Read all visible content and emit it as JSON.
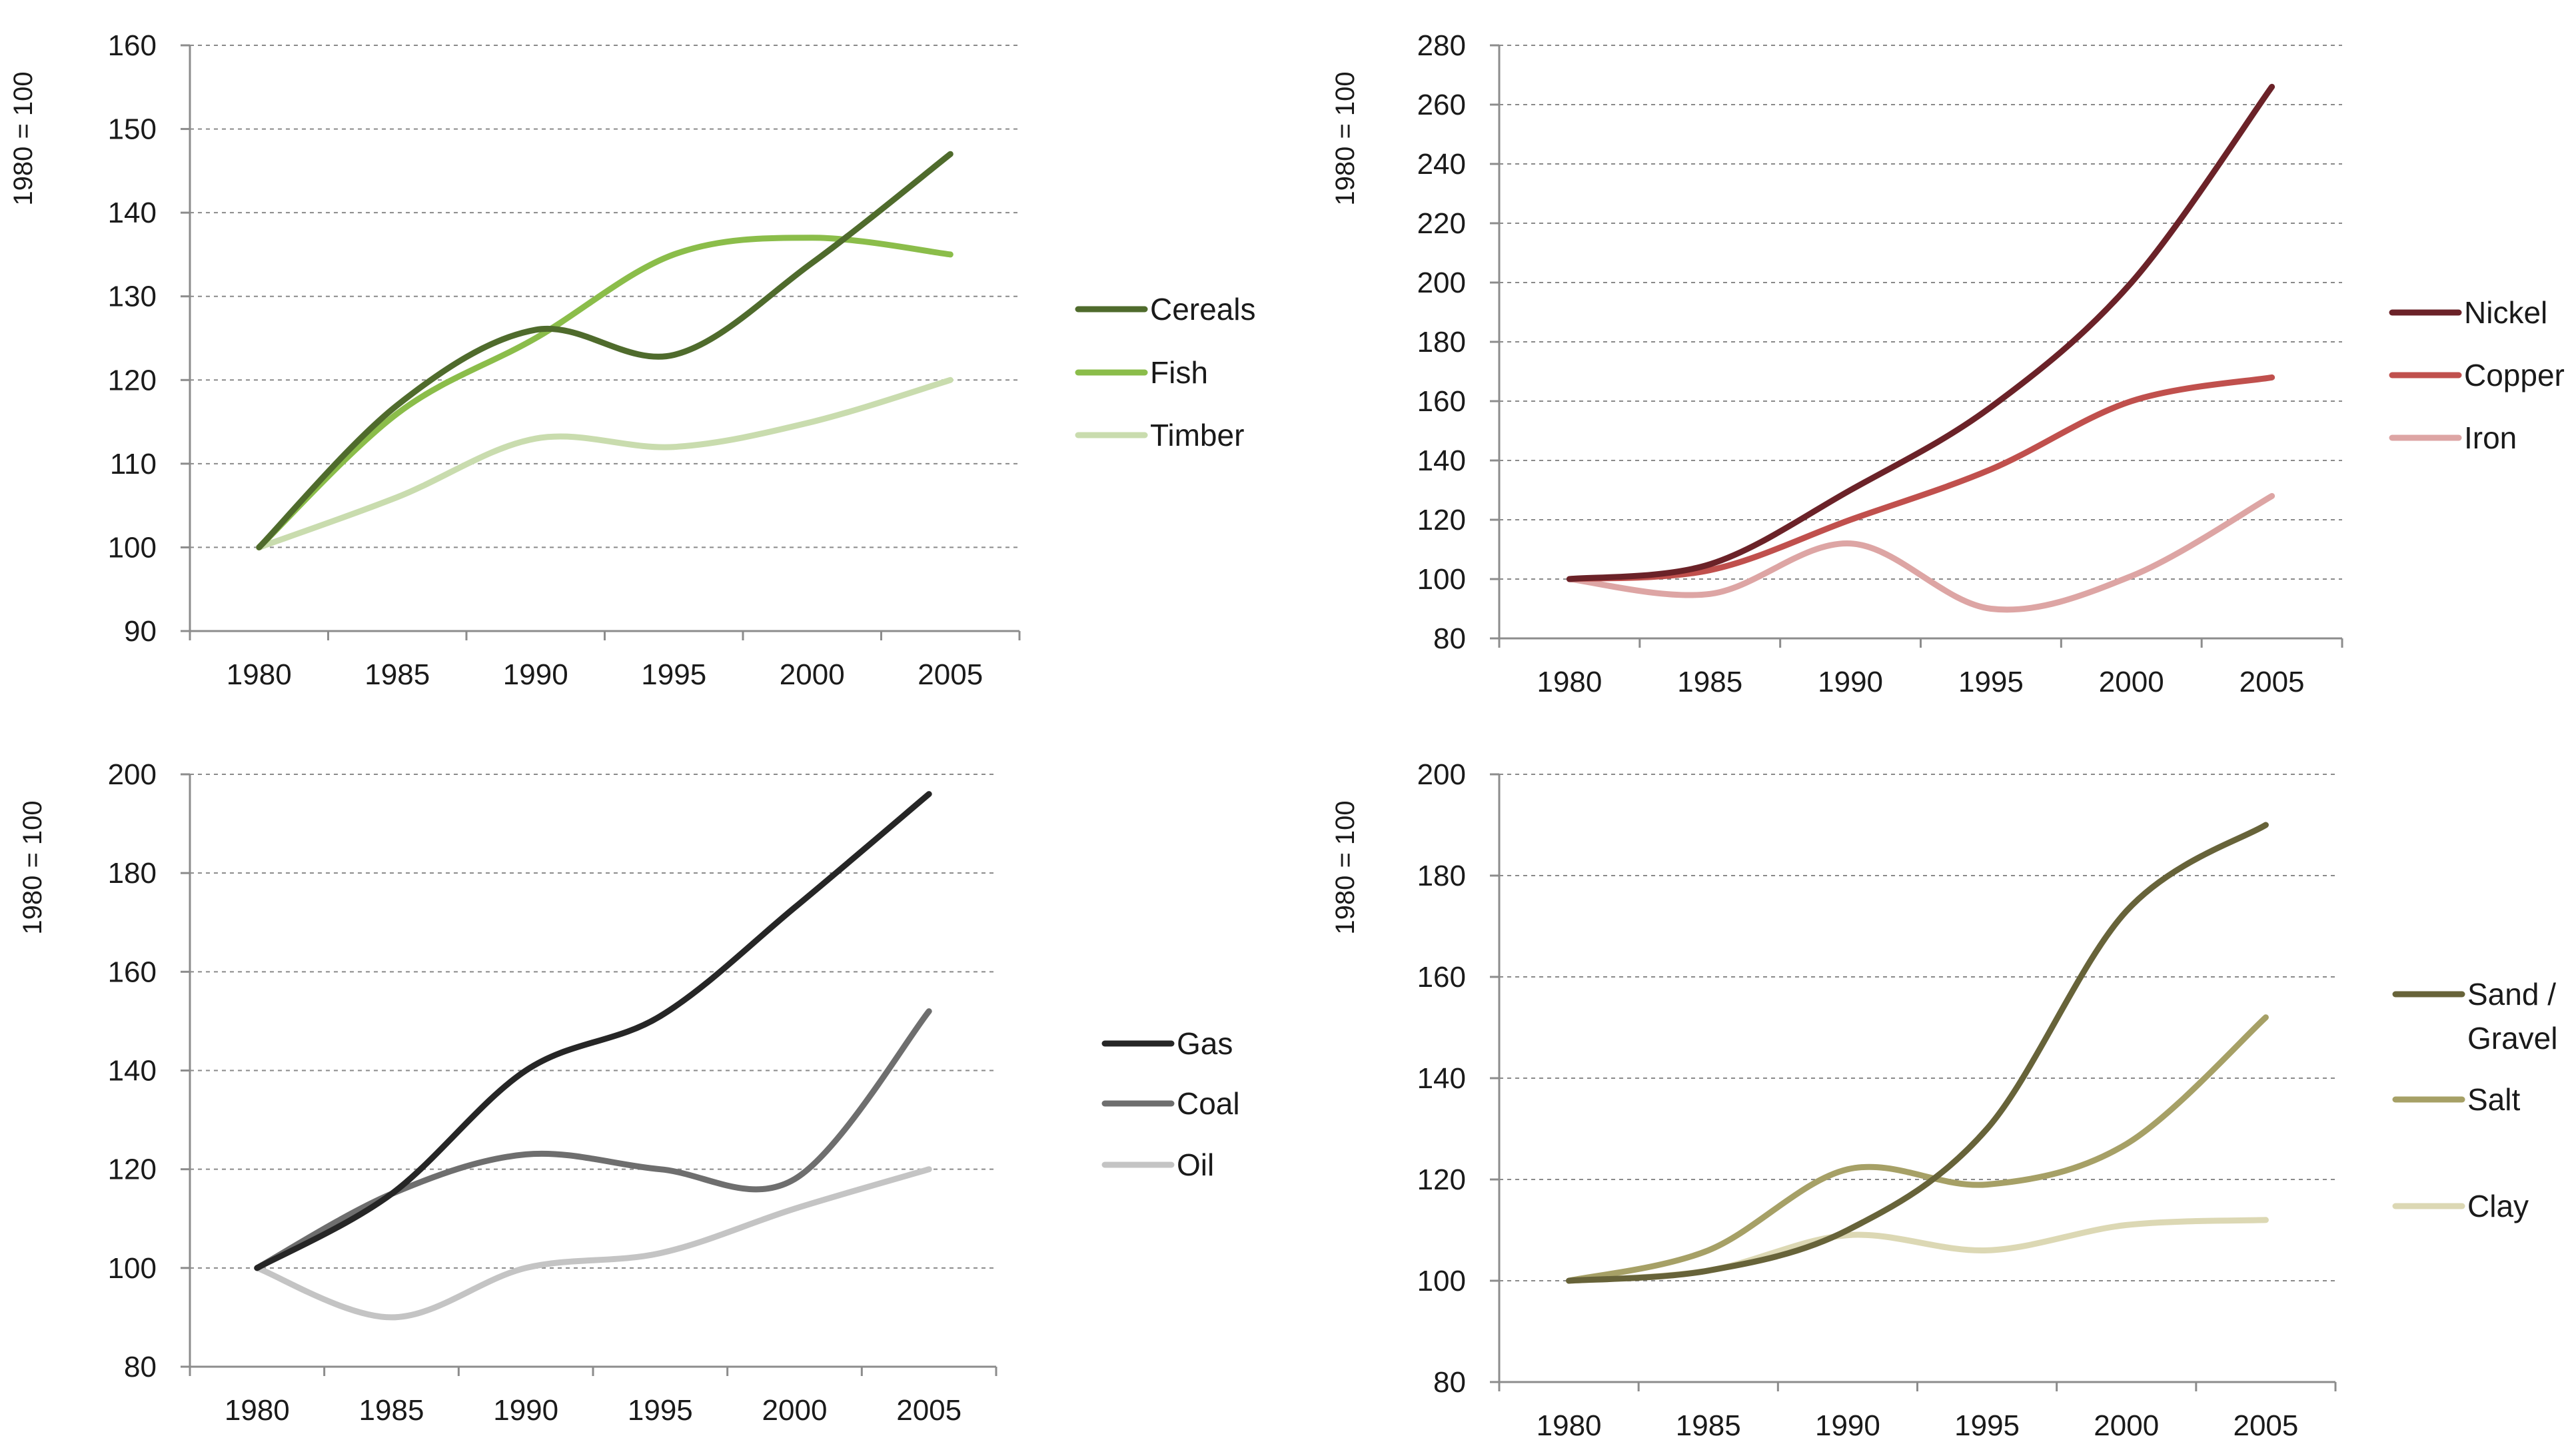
{
  "chart_data": [
    {
      "id": "renewables",
      "type": "line",
      "title": "",
      "xlabel": "",
      "ylabel": "1980 = 100",
      "x": [
        1980,
        1985,
        1990,
        1995,
        2000,
        2005
      ],
      "xticks": [
        "1980",
        "1985",
        "1990",
        "1995",
        "2000",
        "2005"
      ],
      "ylim": [
        90,
        160
      ],
      "yticks": [
        90,
        100,
        110,
        120,
        130,
        140,
        150,
        160
      ],
      "grid": true,
      "legend": "right",
      "series": [
        {
          "name": "Cereals",
          "label_lines": [
            "Cereals"
          ],
          "color": "#4f6b2c",
          "values": [
            100,
            117,
            126,
            123,
            134,
            147
          ]
        },
        {
          "name": "Fish",
          "label_lines": [
            "Fish"
          ],
          "color": "#8bbd4a",
          "values": [
            100,
            116,
            125,
            135,
            137,
            135
          ]
        },
        {
          "name": "Timber",
          "label_lines": [
            "Timber"
          ],
          "color": "#c9dcae",
          "values": [
            100,
            106,
            113,
            112,
            115,
            120
          ]
        }
      ]
    },
    {
      "id": "metals",
      "type": "line",
      "title": "",
      "xlabel": "",
      "ylabel": "1980 = 100",
      "x": [
        1980,
        1985,
        1990,
        1995,
        2000,
        2005
      ],
      "xticks": [
        "1980",
        "1985",
        "1990",
        "1995",
        "2000",
        "2005"
      ],
      "ylim": [
        80,
        280
      ],
      "yticks": [
        80,
        100,
        120,
        140,
        160,
        180,
        200,
        220,
        240,
        260,
        280
      ],
      "grid": true,
      "legend": "right",
      "series": [
        {
          "name": "Nickel",
          "label_lines": [
            "Nickel"
          ],
          "color": "#6b2228",
          "values": [
            100,
            105,
            130,
            158,
            200,
            266
          ]
        },
        {
          "name": "Copper",
          "label_lines": [
            "Copper"
          ],
          "color": "#c0504d",
          "values": [
            100,
            103,
            120,
            137,
            160,
            168
          ]
        },
        {
          "name": "Iron",
          "label_lines": [
            "Iron"
          ],
          "color": "#dda5a4",
          "values": [
            100,
            95,
            112,
            90,
            101,
            128
          ]
        }
      ]
    },
    {
      "id": "energy",
      "type": "line",
      "title": "",
      "xlabel": "",
      "ylabel": "1980 = 100",
      "x": [
        1980,
        1985,
        1990,
        1995,
        2000,
        2005
      ],
      "xticks": [
        "1980",
        "1985",
        "1990",
        "1995",
        "2000",
        "2005"
      ],
      "ylim": [
        80,
        200
      ],
      "yticks": [
        80,
        100,
        120,
        140,
        160,
        180,
        200
      ],
      "grid": true,
      "legend": "right",
      "series": [
        {
          "name": "Gas",
          "label_lines": [
            "Gas"
          ],
          "color": "#262626",
          "values": [
            100,
            115,
            140,
            151,
            173,
            196
          ]
        },
        {
          "name": "Coal",
          "label_lines": [
            "Coal"
          ],
          "color": "#6e6e6e",
          "values": [
            100,
            115,
            123,
            120,
            118,
            152
          ]
        },
        {
          "name": "Oil",
          "label_lines": [
            "Oil"
          ],
          "color": "#c4c4c4",
          "values": [
            100,
            90,
            100,
            103,
            112,
            120
          ]
        }
      ]
    },
    {
      "id": "construction",
      "type": "line",
      "title": "",
      "xlabel": "",
      "ylabel": "1980 = 100",
      "x": [
        1980,
        1985,
        1990,
        1995,
        2000,
        2005
      ],
      "xticks": [
        "1980",
        "1985",
        "1990",
        "1995",
        "2000",
        "2005"
      ],
      "ylim": [
        80,
        200
      ],
      "yticks": [
        80,
        100,
        120,
        140,
        160,
        180,
        200
      ],
      "grid": true,
      "legend": "right",
      "series": [
        {
          "name": "Sand / Gravel",
          "label_lines": [
            "Sand /",
            "Gravel"
          ],
          "color": "#676339",
          "values": [
            100,
            102,
            110,
            130,
            173,
            190
          ]
        },
        {
          "name": "Salt",
          "label_lines": [
            "Salt"
          ],
          "color": "#a6a066",
          "values": [
            100,
            106,
            122,
            119,
            127,
            152
          ]
        },
        {
          "name": "Clay",
          "label_lines": [
            "Clay"
          ],
          "color": "#dcd8b4",
          "values": [
            100,
            102,
            109,
            106,
            111,
            112
          ]
        }
      ]
    }
  ]
}
